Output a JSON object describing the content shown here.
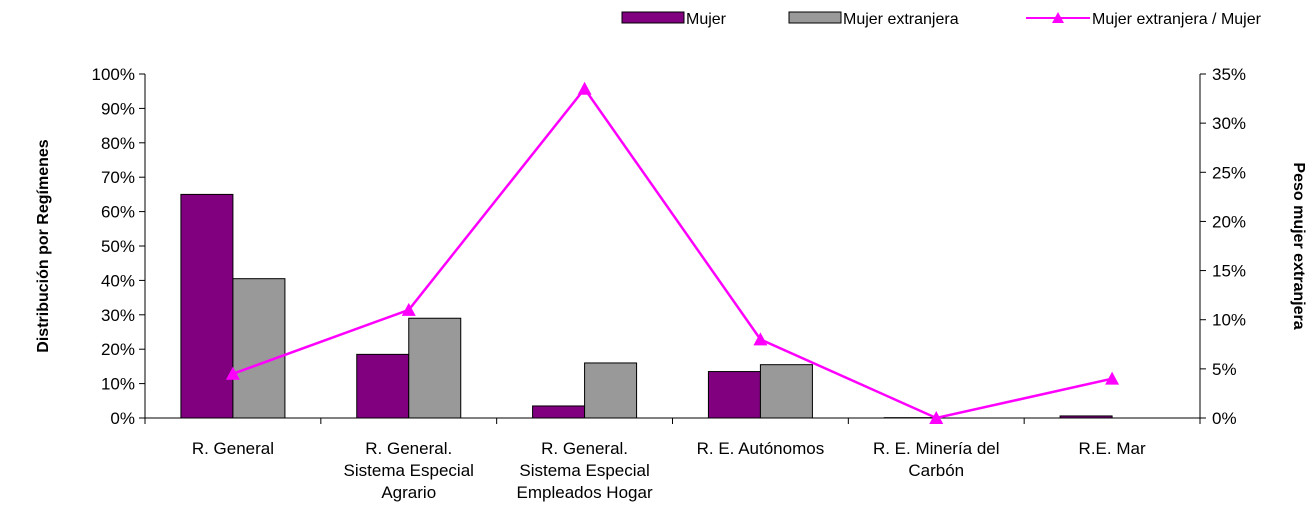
{
  "chart_data": {
    "type": "bar",
    "title": "",
    "xlabel": "",
    "ylabel": "Distribución por Regímenes",
    "y2label": "Peso mujer extranjera",
    "categories": [
      [
        "R. General"
      ],
      [
        "R. General.",
        "Sistema Especial",
        "Agrario"
      ],
      [
        "R. General.",
        "Sistema Especial",
        "Empleados Hogar"
      ],
      [
        "R. E. Autónomos"
      ],
      [
        "R. E. Minería del",
        "Carbón"
      ],
      [
        "R.E. Mar"
      ]
    ],
    "series": [
      {
        "name": "Mujer",
        "kind": "bar",
        "axis": "left",
        "color": "#800080",
        "values": [
          0.65,
          0.185,
          0.035,
          0.135,
          0.001,
          0.006
        ]
      },
      {
        "name": "Mujer extranjera",
        "kind": "bar",
        "axis": "left",
        "color": "#999999",
        "values": [
          0.405,
          0.29,
          0.16,
          0.155,
          0.0,
          0.0
        ]
      },
      {
        "name": "Mujer extranjera / Mujer",
        "kind": "line",
        "axis": "right",
        "color": "#ff00ff",
        "marker": "triangle",
        "values": [
          0.045,
          0.11,
          0.335,
          0.08,
          0.0,
          0.04
        ]
      }
    ],
    "ylim": [
      0,
      1
    ],
    "y2lim": [
      0,
      0.35
    ],
    "yticks": [
      "0%",
      "10%",
      "20%",
      "30%",
      "40%",
      "50%",
      "60%",
      "70%",
      "80%",
      "90%",
      "100%"
    ],
    "y2ticks": [
      "0%",
      "5%",
      "10%",
      "15%",
      "20%",
      "25%",
      "30%",
      "35%"
    ],
    "grid": false,
    "legend": "top-right"
  }
}
